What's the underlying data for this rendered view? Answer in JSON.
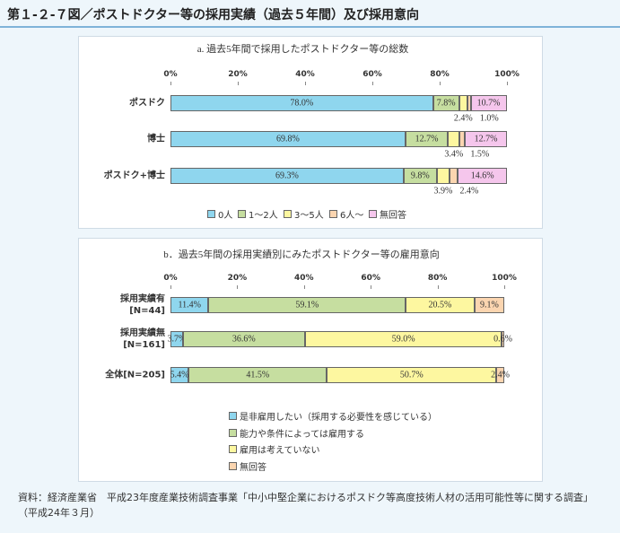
{
  "header": {
    "title": "第１-２-７図／ポストドクター等の採用実績（過去５年間）及び採用意向"
  },
  "chart_data": [
    {
      "type": "bar",
      "orientation": "horizontal",
      "stacked": true,
      "title": "a. 過去5年間で採用したポストドクター等の総数",
      "categories": [
        "ポスドク",
        "博士",
        "ポスドク+博士"
      ],
      "series": [
        {
          "name": "0人",
          "color": "#8fd6ee",
          "values": [
            78.0,
            69.8,
            69.3
          ],
          "value_labels": [
            "78.0%",
            "69.8%",
            "69.3%"
          ]
        },
        {
          "name": "1～2人",
          "color": "#c6dea0",
          "values": [
            7.8,
            12.7,
            9.8
          ],
          "value_labels": [
            "7.8%",
            "12.7%",
            "9.8%"
          ]
        },
        {
          "name": "3～5人",
          "color": "#fdf7a0",
          "values": [
            2.4,
            3.4,
            3.9
          ],
          "value_labels": [
            "2.4%",
            "3.4%",
            "3.9%"
          ]
        },
        {
          "name": "6人～",
          "color": "#fbd5b0",
          "values": [
            1.0,
            1.5,
            2.4
          ],
          "value_labels": [
            "1.0%",
            "1.5%",
            "2.4%"
          ]
        },
        {
          "name": "無回答",
          "color": "#f5c6ec",
          "values": [
            10.7,
            12.7,
            14.6
          ],
          "value_labels": [
            "10.7%",
            "12.7%",
            "14.6%"
          ]
        }
      ],
      "xlim": [
        0,
        100
      ],
      "xticks": [
        {
          "value": 0,
          "label": "0%"
        },
        {
          "value": 20,
          "label": "20%"
        },
        {
          "value": 40,
          "label": "40%"
        },
        {
          "value": 60,
          "label": "60%"
        },
        {
          "value": 80,
          "label": "80%"
        },
        {
          "value": 100,
          "label": "100%"
        }
      ],
      "legend_position": "bottom"
    },
    {
      "type": "bar",
      "orientation": "horizontal",
      "stacked": true,
      "title": "b．過去5年間の採用実績別にみたポストドクター等の雇用意向",
      "categories": [
        "採用実績有\n[N=44]",
        "採用実績無\n[N=161]",
        "全体[N=205]"
      ],
      "series": [
        {
          "name": "是非雇用したい（採用する必要性を感じている）",
          "color": "#8fd6ee",
          "values": [
            11.4,
            3.7,
            5.4
          ],
          "value_labels": [
            "11.4%",
            "3.7%",
            "5.4%"
          ]
        },
        {
          "name": "能力や条件によっては雇用する",
          "color": "#c6dea0",
          "values": [
            59.1,
            36.6,
            41.5
          ],
          "value_labels": [
            "59.1%",
            "36.6%",
            "41.5%"
          ]
        },
        {
          "name": "雇用は考えていない",
          "color": "#fdf7a0",
          "values": [
            20.5,
            59.0,
            50.7
          ],
          "value_labels": [
            "20.5%",
            "59.0%",
            "50.7%"
          ]
        },
        {
          "name": "無回答",
          "color": "#fbd5b0",
          "values": [
            9.1,
            0.6,
            2.4
          ],
          "value_labels": [
            "9.1%",
            "0.6%",
            "2.4%"
          ]
        }
      ],
      "xlim": [
        0,
        100
      ],
      "xticks": [
        {
          "value": 0,
          "label": "0%"
        },
        {
          "value": 20,
          "label": "20%"
        },
        {
          "value": 40,
          "label": "40%"
        },
        {
          "value": 60,
          "label": "60%"
        },
        {
          "value": 80,
          "label": "80%"
        },
        {
          "value": 100,
          "label": "100%"
        }
      ],
      "legend_position": "bottom-vertical"
    }
  ],
  "footer": {
    "source": "資料：経済産業省　平成23年度産業技術調査事業「中小中堅企業におけるポスドク等高度技術人材の活用可能性等に関する調査」（平成24年３月）"
  }
}
